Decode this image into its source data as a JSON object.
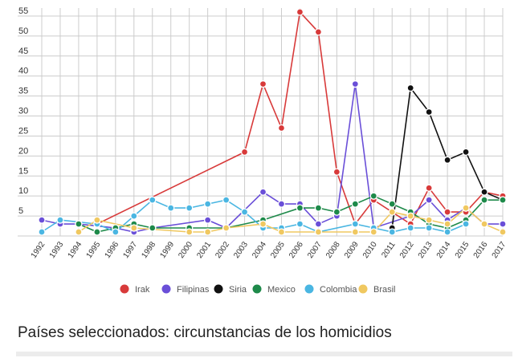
{
  "chart_data": {
    "type": "line",
    "categories": [
      "1992",
      "1993",
      "1994",
      "1995",
      "1996",
      "1997",
      "1998",
      "1999",
      "2000",
      "2001",
      "2002",
      "2003",
      "2004",
      "2005",
      "2006",
      "2007",
      "2008",
      "2009",
      "2010",
      "2011",
      "2012",
      "2013",
      "2014",
      "2015",
      "2016",
      "2017"
    ],
    "ylim": [
      0,
      57
    ],
    "yticks": [
      5,
      10,
      15,
      20,
      25,
      30,
      35,
      40,
      45,
      50,
      55
    ],
    "grid": true,
    "legend_position": "bottom",
    "series": [
      {
        "name": "Irak",
        "color": "#d83a3a",
        "values": [
          null,
          null,
          null,
          3,
          null,
          null,
          null,
          null,
          null,
          null,
          null,
          21,
          38,
          27,
          56,
          51,
          16,
          3,
          9,
          null,
          3,
          12,
          6,
          6,
          11,
          10
        ]
      },
      {
        "name": "Filipinas",
        "color": "#6a4fd8",
        "values": [
          4,
          3,
          3,
          null,
          2,
          1,
          2,
          null,
          null,
          4,
          2,
          null,
          11,
          8,
          8,
          3,
          5,
          38,
          2,
          null,
          5,
          9,
          4,
          7,
          3,
          3
        ]
      },
      {
        "name": "Siria",
        "color": "#111111",
        "values": [
          null,
          null,
          null,
          null,
          null,
          null,
          null,
          null,
          null,
          null,
          null,
          null,
          null,
          null,
          null,
          null,
          null,
          null,
          null,
          2,
          37,
          31,
          19,
          21,
          11,
          9
        ]
      },
      {
        "name": "Mexico",
        "color": "#1e8a4a",
        "values": [
          null,
          null,
          3,
          1,
          2,
          3,
          2,
          null,
          2,
          null,
          2,
          null,
          4,
          null,
          7,
          7,
          6,
          8,
          10,
          8,
          6,
          3,
          2,
          4,
          9,
          9
        ]
      },
      {
        "name": "Colombia",
        "color": "#4ab6e2",
        "values": [
          1,
          4,
          null,
          3,
          1,
          5,
          9,
          7,
          7,
          8,
          9,
          6,
          2,
          2,
          3,
          1,
          null,
          3,
          2,
          1,
          2,
          2,
          1,
          3,
          null,
          null
        ]
      },
      {
        "name": "Brasil",
        "color": "#f0c860",
        "values": [
          null,
          null,
          1,
          4,
          null,
          2,
          null,
          null,
          1,
          1,
          2,
          null,
          3,
          1,
          null,
          1,
          null,
          1,
          1,
          6,
          5,
          4,
          3,
          7,
          3,
          1
        ]
      }
    ]
  },
  "subtitle": "Países seleccionados: circunstancias de los homicidios"
}
